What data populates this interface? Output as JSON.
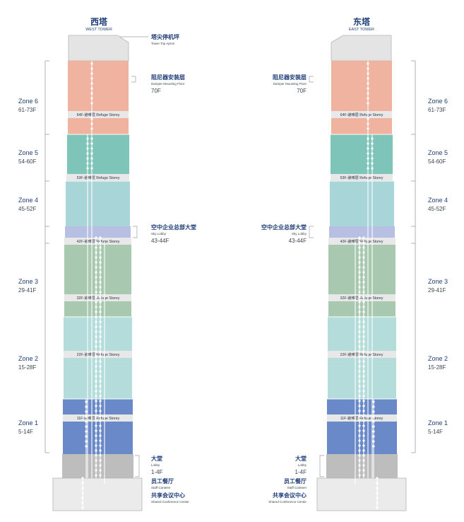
{
  "towers": [
    {
      "key": "west",
      "title_cn": "西塔",
      "title_en": "WEST TOWER"
    },
    {
      "key": "east",
      "title_cn": "东塔",
      "title_en": "EAST TOWER"
    }
  ],
  "bands": [
    {
      "key": "z6",
      "color": "#f0b3a0"
    },
    {
      "key": "z5",
      "color": "#7fc4b8"
    },
    {
      "key": "z4",
      "color": "#a8d6d8"
    },
    {
      "key": "sky",
      "color": "#b7bfe2"
    },
    {
      "key": "z3",
      "color": "#a8c8b0"
    },
    {
      "key": "z2",
      "color": "#b3dcda"
    },
    {
      "key": "z1",
      "color": "#6a89c8"
    },
    {
      "key": "lobby",
      "color": "#bdbdbd"
    },
    {
      "key": "base",
      "color": "#ebebeb"
    },
    {
      "key": "crown",
      "color": "#e4e4e4"
    }
  ],
  "refuge_floors": [
    {
      "floor": "64F",
      "label": "64F-避难层  Refuge Storey"
    },
    {
      "floor": "53F",
      "label": "53F-避难层  Refuge Storey"
    },
    {
      "floor": "42F",
      "label": "42F-避难层  Refuge Storey"
    },
    {
      "floor": "32F",
      "label": "32F-避难层  Refuge Storey"
    },
    {
      "floor": "22F",
      "label": "22F-避难层  Refuge Storey"
    },
    {
      "floor": "11F",
      "label": "11F-避难层  Refuge Storey"
    }
  ],
  "zones": [
    {
      "name": "Zone 6",
      "range": "61-73F"
    },
    {
      "name": "Zone 5",
      "range": "54-60F"
    },
    {
      "name": "Zone 4",
      "range": "45-52F"
    },
    {
      "name": "Zone 3",
      "range": "29-41F"
    },
    {
      "name": "Zone 2",
      "range": "15-28F"
    },
    {
      "name": "Zone 1",
      "range": "5-14F"
    }
  ],
  "callouts": {
    "apron": {
      "cn": "塔尖停机坪",
      "en": "Tower Top Apron"
    },
    "damper": {
      "cn": "阻尼器安装层",
      "en": "Damper Mounting Floor",
      "floor": "70F"
    },
    "sky_lobby": {
      "cn": "空中企业总部大堂",
      "en": "Sky Lobby",
      "floor": "43-44F"
    },
    "lobby": {
      "cn": "大堂",
      "en": "Lobby",
      "floor": "1-4F"
    },
    "canteen": {
      "cn": "员工餐厅",
      "en": "Staff Canteen"
    },
    "conference": {
      "cn": "共享会议中心",
      "en": "Shared Conference Center"
    }
  },
  "colors": {
    "primary_text": "#1f3e78",
    "secondary_text": "#3d4650",
    "leader_line": "#9aa0a6",
    "elevator": "#ffffff",
    "refuge_band": "#e8e8e8"
  }
}
